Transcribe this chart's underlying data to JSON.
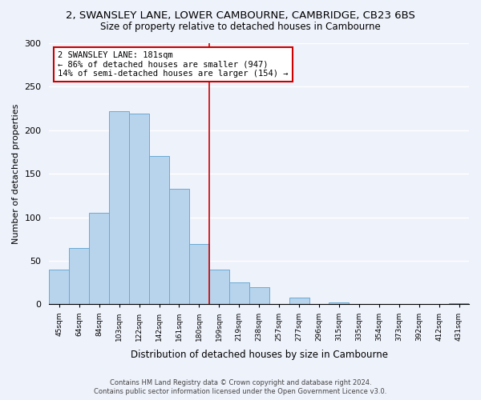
{
  "title": "2, SWANSLEY LANE, LOWER CAMBOURNE, CAMBRIDGE, CB23 6BS",
  "subtitle": "Size of property relative to detached houses in Cambourne",
  "xlabel": "Distribution of detached houses by size in Cambourne",
  "ylabel": "Number of detached properties",
  "categories": [
    "45sqm",
    "64sqm",
    "84sqm",
    "103sqm",
    "122sqm",
    "142sqm",
    "161sqm",
    "180sqm",
    "199sqm",
    "219sqm",
    "238sqm",
    "257sqm",
    "277sqm",
    "296sqm",
    "315sqm",
    "335sqm",
    "354sqm",
    "373sqm",
    "392sqm",
    "412sqm",
    "431sqm"
  ],
  "values": [
    40,
    65,
    105,
    222,
    219,
    170,
    133,
    69,
    40,
    25,
    20,
    0,
    8,
    0,
    2,
    0,
    0,
    0,
    0,
    0,
    1
  ],
  "bar_color": "#b8d4ec",
  "bar_edge_color": "#6aaad4",
  "vline_color": "#cc0000",
  "annotation_line1": "2 SWANSLEY LANE: 181sqm",
  "annotation_line2": "← 86% of detached houses are smaller (947)",
  "annotation_line3": "14% of semi-detached houses are larger (154) →",
  "annotation_box_edge_color": "#cc0000",
  "annotation_box_face_color": "#ffffff",
  "ylim": [
    0,
    300
  ],
  "yticks": [
    0,
    50,
    100,
    150,
    200,
    250,
    300
  ],
  "footer_line1": "Contains HM Land Registry data © Crown copyright and database right 2024.",
  "footer_line2": "Contains public sector information licensed under the Open Government Licence v3.0.",
  "background_color": "#eef2fb"
}
